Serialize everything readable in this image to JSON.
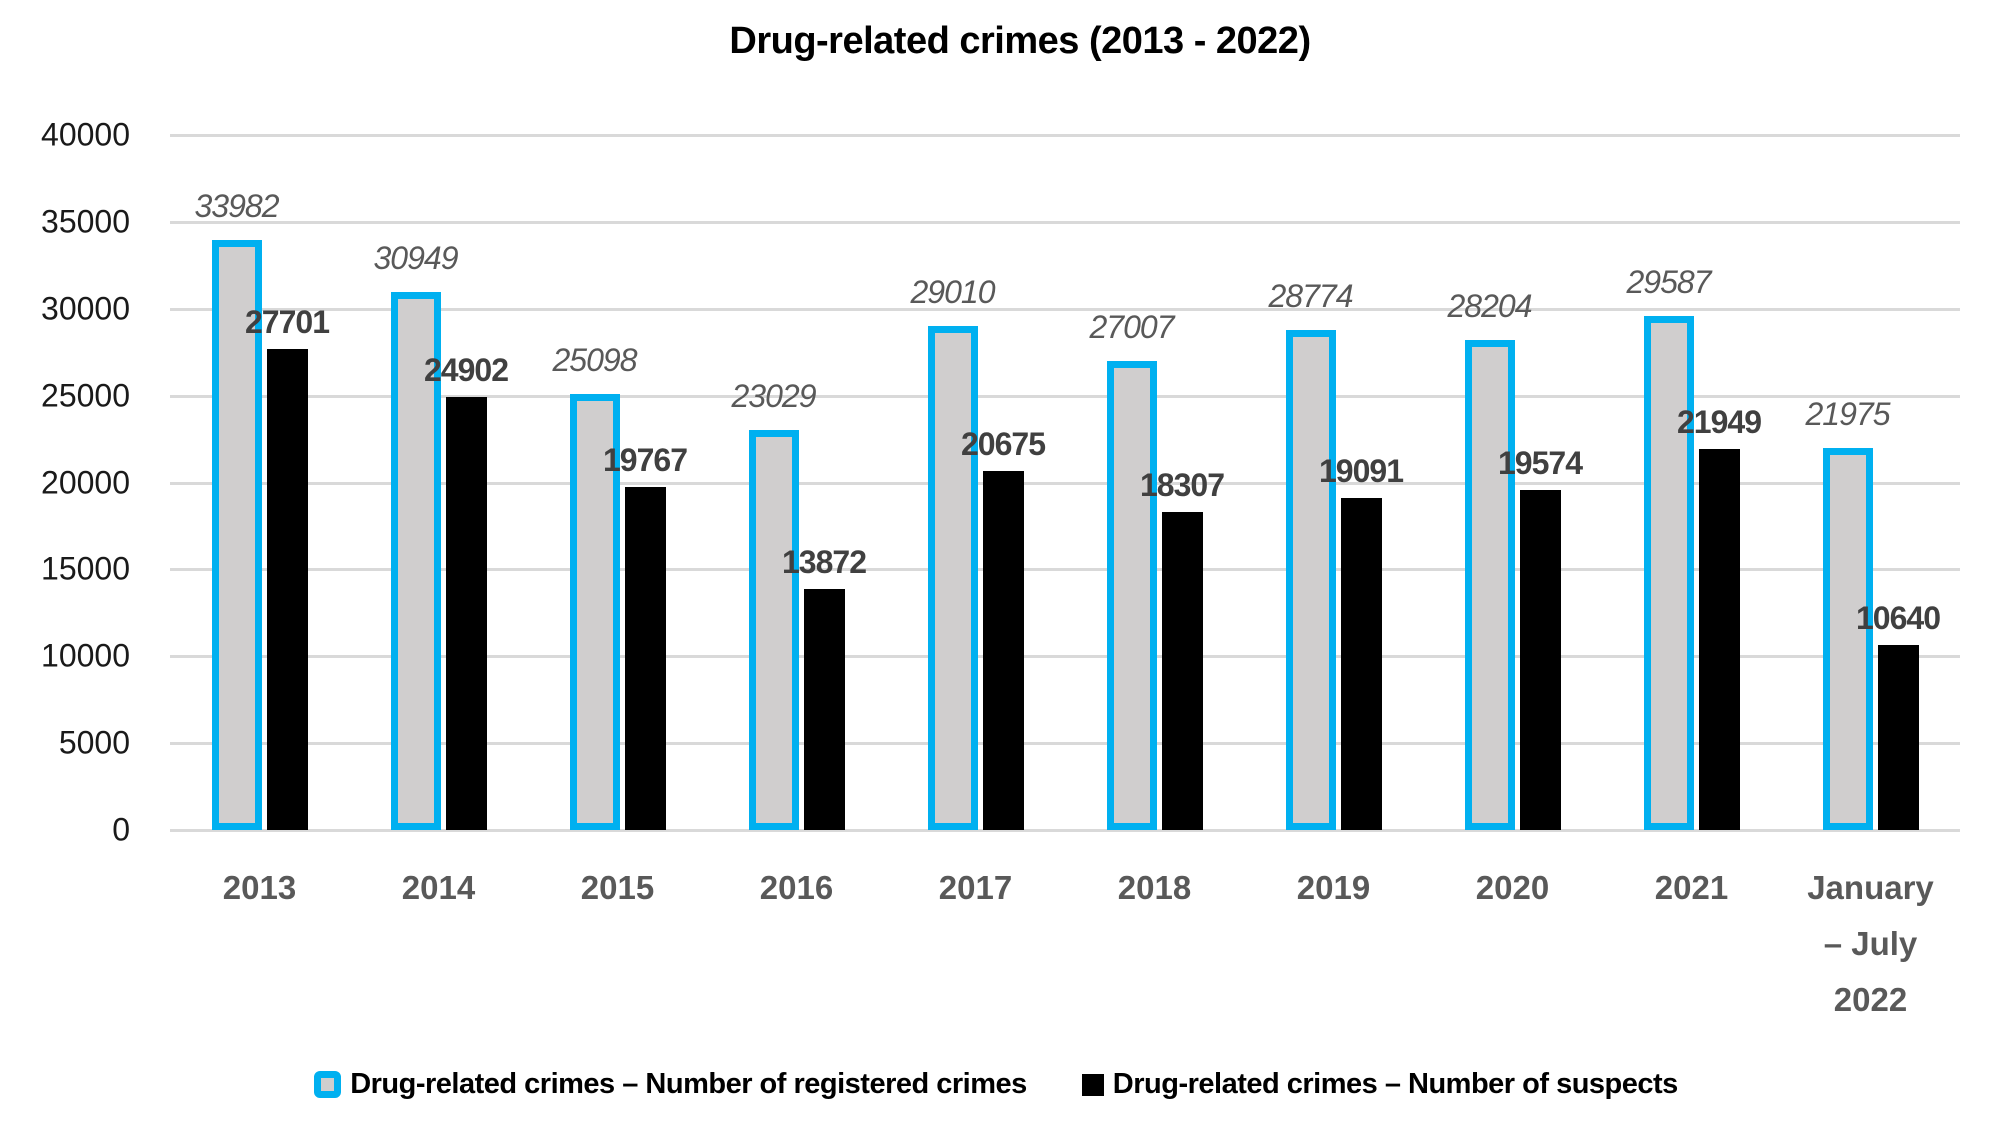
{
  "chart_data": {
    "type": "bar",
    "title": "Drug-related crimes (2013 - 2022)",
    "categories": [
      "2013",
      "2014",
      "2015",
      "2016",
      "2017",
      "2018",
      "2019",
      "2020",
      "2021",
      "January – July 2022"
    ],
    "series": [
      {
        "name": "Drug-related crimes – Number of registered crimes",
        "values": [
          33982,
          30949,
          25098,
          23029,
          29010,
          27007,
          28774,
          28204,
          29587,
          21975
        ],
        "bar_fill": "#D0CECE",
        "bar_border": "#00B0F0",
        "label_style": "italic gray"
      },
      {
        "name": "Drug-related crimes – Number of suspects",
        "values": [
          27701,
          24902,
          19767,
          13872,
          20675,
          18307,
          19091,
          19574,
          21949,
          10640
        ],
        "bar_fill": "#000000",
        "label_style": "bold dark-gray"
      }
    ],
    "ylim": [
      0,
      40000
    ],
    "ytick_interval": 5000,
    "yticks": [
      0,
      5000,
      10000,
      15000,
      20000,
      25000,
      30000,
      35000,
      40000
    ],
    "grid": true,
    "data_labels": true,
    "legend_position": "bottom"
  },
  "colors": {
    "accent_cyan": "#00B0F0",
    "bar_gray_fill": "#D0CECE",
    "bar_black": "#000000",
    "gridline": "#D9D9D9",
    "axis_label": "#1a1a1a",
    "category_label": "#595959",
    "value_label_registered": "#595959",
    "value_label_suspects": "#404040"
  }
}
